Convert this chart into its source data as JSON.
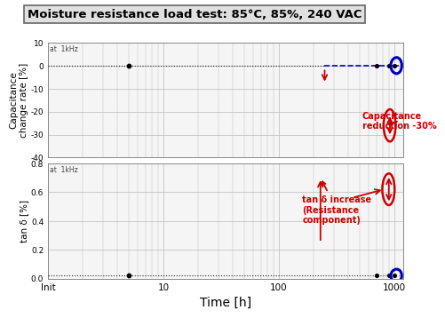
{
  "title": "Moisture resistance load test: 85°C, 85%, 240 VAC",
  "title_fontsize": 9.5,
  "background_color": "#ffffff",
  "top_panel": {
    "ylabel": "Capacitance\nchange rate [%]",
    "ylim": [
      -40,
      10
    ],
    "yticks": [
      10,
      0,
      -10,
      -20,
      -30,
      -40
    ],
    "top_label": "at  1kHz",
    "annotation_text": "Capacitance\nreduction -30%"
  },
  "bottom_panel": {
    "ylabel": "tan δ [%]",
    "ylim": [
      0.0,
      0.8
    ],
    "yticks": [
      0.0,
      0.2,
      0.4,
      0.6,
      0.8
    ],
    "top_label": "at  1kHz",
    "annotation_text": "tan δ increase\n(Resistance\ncomponent)"
  },
  "xlabel": "Time [h]",
  "xlabel_fontsize": 10,
  "xticks": [
    1,
    10,
    100,
    1000
  ],
  "xticklabels": [
    "Init",
    "10",
    "100",
    "1000"
  ],
  "grid_color": "#bbbbbb",
  "line_color_black": "#222222",
  "line_color_blue": "#0000cc",
  "red_color": "#cc0000",
  "blue_circle_color": "#0000bb"
}
